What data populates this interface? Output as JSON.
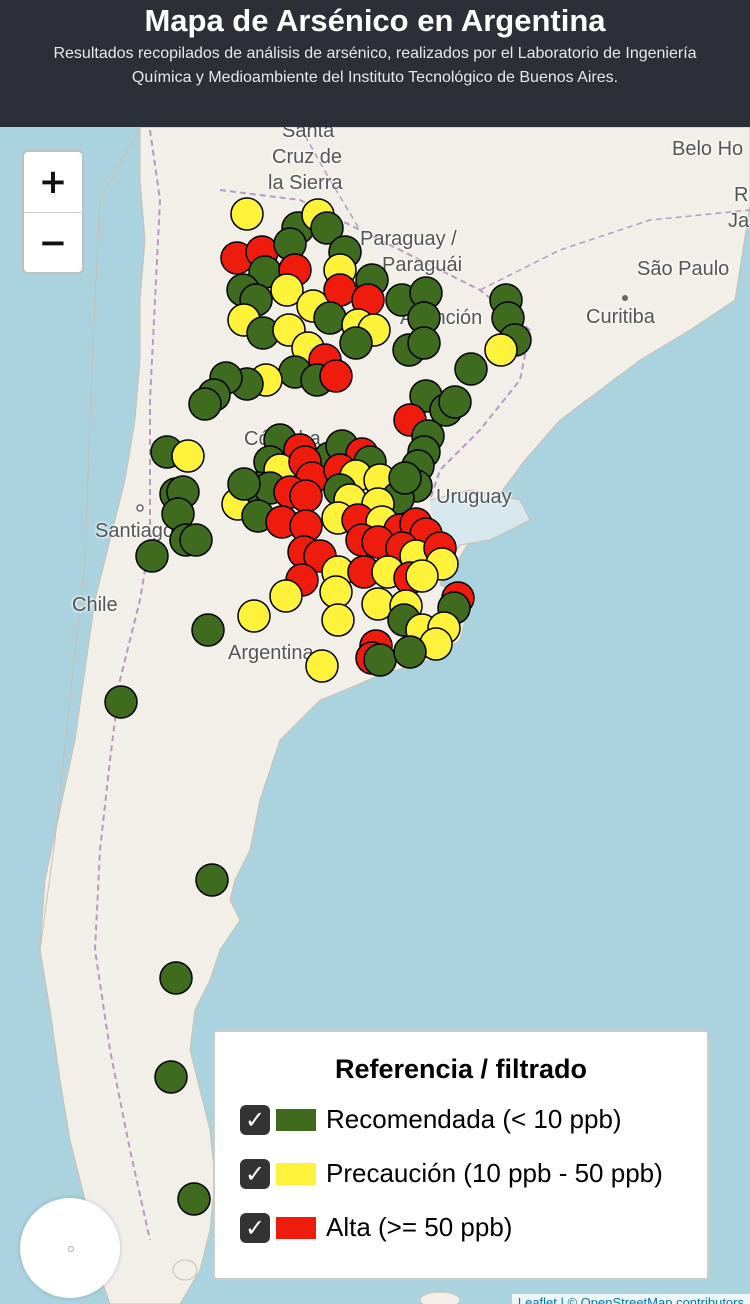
{
  "header": {
    "title": "Mapa de Arsénico en Argentina",
    "subtitle": "Resultados recopilados de análisis de arsénico, realizados por el Laboratorio de Ingeniería Química y Medioambiente del Instituto Tecnológico de Buenos Aires."
  },
  "zoom": {
    "in_label": "+",
    "out_label": "−"
  },
  "map_labels": {
    "santa_cruz_1": "Santa",
    "santa_cruz_2": "Cruz de",
    "santa_cruz_3": "la Sierra",
    "paraguay_1": "Paraguay /",
    "paraguay_2": "Paraguái",
    "asuncion": "Asunción",
    "sao_paulo": "São Paulo",
    "curitiba": "Curitiba",
    "belo": "Belo Ho",
    "rio_1": "Ri",
    "rio_2": "Jan",
    "cordoba": "Córdoba",
    "uruguay": "Uruguay",
    "santiago": "Santiago",
    "chile": "Chile",
    "argentina": "Argentina"
  },
  "legend": {
    "title": "Referencia / filtrado",
    "items": [
      {
        "label": "Recomendada (< 10 ppb)",
        "color": "#3f6b1f",
        "checked": "✓"
      },
      {
        "label": "Precaución (10 ppb - 50 ppb)",
        "color": "#fff23a",
        "checked": "✓"
      },
      {
        "label": "Alta (>= 50 ppb)",
        "color": "#ef1b0d",
        "checked": "✓"
      }
    ]
  },
  "attribution": "Leaflet | © OpenStreetMap contributors",
  "colors": {
    "green": "#3f6b1f",
    "yellow": "#fff23a",
    "red": "#ef1b0d",
    "sea": "#aad3df",
    "land": "#f2efe9"
  }
}
